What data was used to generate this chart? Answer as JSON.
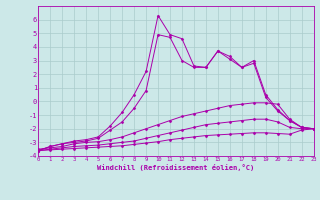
{
  "xlabel": "Windchill (Refroidissement éolien,°C)",
  "background_color": "#cce8e8",
  "grid_color": "#aacccc",
  "line_color": "#aa00aa",
  "xlim": [
    0,
    23
  ],
  "ylim": [
    -4,
    7
  ],
  "yticks": [
    -4,
    -3,
    -2,
    -1,
    0,
    1,
    2,
    3,
    4,
    5,
    6
  ],
  "xticks": [
    0,
    1,
    2,
    3,
    4,
    5,
    6,
    7,
    8,
    9,
    10,
    11,
    12,
    13,
    14,
    15,
    16,
    17,
    18,
    19,
    20,
    21,
    22,
    23
  ],
  "series": [
    {
      "x": [
        0,
        1,
        2,
        3,
        4,
        5,
        6,
        7,
        8,
        9,
        10,
        11,
        12,
        13,
        14,
        15,
        16,
        17,
        18,
        19,
        20,
        21,
        22,
        23
      ],
      "y": [
        -3.6,
        -3.3,
        -3.1,
        -2.9,
        -2.8,
        -2.6,
        -1.8,
        -0.8,
        0.5,
        2.2,
        6.3,
        4.9,
        4.6,
        2.6,
        2.5,
        3.7,
        3.3,
        2.5,
        3.0,
        0.5,
        -0.6,
        -1.4,
        -1.9,
        -2.0
      ]
    },
    {
      "x": [
        0,
        1,
        2,
        3,
        4,
        5,
        6,
        7,
        8,
        9,
        10,
        11,
        12,
        13,
        14,
        15,
        16,
        17,
        18,
        19,
        20,
        21,
        22,
        23
      ],
      "y": [
        -3.6,
        -3.3,
        -3.1,
        -3.0,
        -2.9,
        -2.7,
        -2.1,
        -1.5,
        -0.5,
        0.8,
        4.9,
        4.7,
        3.0,
        2.5,
        2.5,
        3.7,
        3.1,
        2.5,
        2.8,
        0.3,
        -0.7,
        -1.4,
        -1.9,
        -2.0
      ]
    },
    {
      "x": [
        0,
        1,
        2,
        3,
        4,
        5,
        6,
        7,
        8,
        9,
        10,
        11,
        12,
        13,
        14,
        15,
        16,
        17,
        18,
        19,
        20,
        21,
        22,
        23
      ],
      "y": [
        -3.5,
        -3.4,
        -3.3,
        -3.1,
        -3.0,
        -2.95,
        -2.8,
        -2.6,
        -2.3,
        -2.0,
        -1.7,
        -1.4,
        -1.1,
        -0.9,
        -0.7,
        -0.5,
        -0.3,
        -0.2,
        -0.1,
        -0.1,
        -0.2,
        -1.3,
        -1.9,
        -2.0
      ]
    },
    {
      "x": [
        0,
        1,
        2,
        3,
        4,
        5,
        6,
        7,
        8,
        9,
        10,
        11,
        12,
        13,
        14,
        15,
        16,
        17,
        18,
        19,
        20,
        21,
        22,
        23
      ],
      "y": [
        -3.6,
        -3.5,
        -3.4,
        -3.3,
        -3.25,
        -3.2,
        -3.1,
        -3.0,
        -2.9,
        -2.7,
        -2.5,
        -2.3,
        -2.1,
        -1.9,
        -1.7,
        -1.6,
        -1.5,
        -1.4,
        -1.3,
        -1.3,
        -1.5,
        -1.9,
        -2.0,
        -2.0
      ]
    },
    {
      "x": [
        0,
        1,
        2,
        3,
        4,
        5,
        6,
        7,
        8,
        9,
        10,
        11,
        12,
        13,
        14,
        15,
        16,
        17,
        18,
        19,
        20,
        21,
        22,
        23
      ],
      "y": [
        -3.6,
        -3.55,
        -3.5,
        -3.45,
        -3.4,
        -3.35,
        -3.3,
        -3.25,
        -3.15,
        -3.05,
        -2.95,
        -2.8,
        -2.7,
        -2.6,
        -2.5,
        -2.45,
        -2.4,
        -2.35,
        -2.3,
        -2.3,
        -2.35,
        -2.4,
        -2.1,
        -2.0
      ]
    }
  ]
}
